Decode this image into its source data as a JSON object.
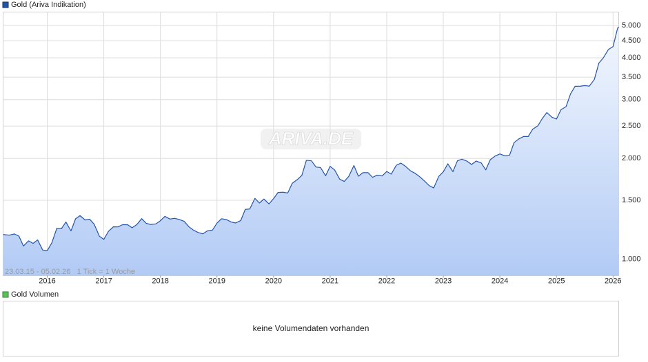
{
  "chart_data": {
    "type": "area",
    "title": "Gold (Ariva Indikation)",
    "info": "23.03.15 - 05.02.26   1 Tick = 1 Woche",
    "watermark": "ARIVA.DE",
    "color": "#2354a8",
    "log_scale": true,
    "grid": true,
    "xlim": [
      2015.22,
      2026.1
    ],
    "xticks": [
      2016,
      2017,
      2018,
      2019,
      2020,
      2021,
      2022,
      2023,
      2024,
      2025,
      2026
    ],
    "ylim": [
      893,
      5480
    ],
    "yticks": [
      {
        "value": 1000,
        "label": "1.000"
      },
      {
        "value": 1500,
        "label": "1.500"
      },
      {
        "value": 2000,
        "label": "2.000"
      },
      {
        "value": 2500,
        "label": "2.500"
      },
      {
        "value": 3000,
        "label": "3.000"
      },
      {
        "value": 3500,
        "label": "3.500"
      },
      {
        "value": 4000,
        "label": "4.000"
      },
      {
        "value": 4500,
        "label": "4.500"
      },
      {
        "value": 5000,
        "label": "5.000"
      }
    ],
    "x": [
      2015.22,
      2015.33,
      2015.42,
      2015.5,
      2015.58,
      2015.67,
      2015.75,
      2015.83,
      2015.92,
      2016.0,
      2016.08,
      2016.17,
      2016.25,
      2016.33,
      2016.42,
      2016.5,
      2016.58,
      2016.67,
      2016.75,
      2016.83,
      2016.92,
      2017.0,
      2017.08,
      2017.17,
      2017.25,
      2017.33,
      2017.42,
      2017.5,
      2017.58,
      2017.67,
      2017.75,
      2017.83,
      2017.92,
      2018.0,
      2018.08,
      2018.17,
      2018.25,
      2018.33,
      2018.42,
      2018.5,
      2018.58,
      2018.67,
      2018.75,
      2018.83,
      2018.92,
      2019.0,
      2019.08,
      2019.17,
      2019.25,
      2019.33,
      2019.42,
      2019.5,
      2019.58,
      2019.67,
      2019.75,
      2019.83,
      2019.92,
      2020.0,
      2020.08,
      2020.17,
      2020.25,
      2020.33,
      2020.42,
      2020.5,
      2020.58,
      2020.67,
      2020.75,
      2020.83,
      2020.92,
      2021.0,
      2021.08,
      2021.17,
      2021.25,
      2021.33,
      2021.42,
      2021.5,
      2021.58,
      2021.67,
      2021.75,
      2021.83,
      2021.92,
      2022.0,
      2022.08,
      2022.17,
      2022.25,
      2022.33,
      2022.42,
      2022.5,
      2022.58,
      2022.67,
      2022.75,
      2022.83,
      2022.92,
      2023.0,
      2023.08,
      2023.17,
      2023.25,
      2023.33,
      2023.42,
      2023.5,
      2023.58,
      2023.67,
      2023.75,
      2023.83,
      2023.92,
      2024.0,
      2024.08,
      2024.17,
      2024.25,
      2024.33,
      2024.42,
      2024.5,
      2024.58,
      2024.67,
      2024.75,
      2024.83,
      2024.92,
      2025.0,
      2025.08,
      2025.17,
      2025.25,
      2025.33,
      2025.42,
      2025.5,
      2025.58,
      2025.67,
      2025.75,
      2025.83,
      2025.92,
      2026.0,
      2026.08,
      2026.1
    ],
    "values": [
      1185,
      1180,
      1190,
      1172,
      1095,
      1135,
      1115,
      1142,
      1065,
      1061,
      1118,
      1238,
      1233,
      1292,
      1215,
      1320,
      1350,
      1310,
      1317,
      1272,
      1173,
      1146,
      1210,
      1250,
      1249,
      1268,
      1268,
      1242,
      1268,
      1322,
      1280,
      1270,
      1275,
      1303,
      1343,
      1318,
      1325,
      1315,
      1298,
      1252,
      1223,
      1201,
      1191,
      1215,
      1222,
      1282,
      1321,
      1313,
      1292,
      1283,
      1305,
      1409,
      1413,
      1520,
      1472,
      1513,
      1463,
      1517,
      1583,
      1586,
      1577,
      1686,
      1730,
      1781,
      1975,
      1968,
      1886,
      1879,
      1776,
      1895,
      1848,
      1734,
      1708,
      1769,
      1906,
      1770,
      1814,
      1814,
      1757,
      1783,
      1774,
      1829,
      1796,
      1909,
      1937,
      1897,
      1837,
      1807,
      1766,
      1711,
      1660,
      1633,
      1768,
      1824,
      1928,
      1827,
      1969,
      1990,
      1963,
      1919,
      1965,
      1940,
      1849,
      1983,
      2036,
      2063,
      2039,
      2044,
      2230,
      2286,
      2327,
      2326,
      2447,
      2503,
      2634,
      2744,
      2657,
      2624,
      2798,
      2858,
      3124,
      3288,
      3289,
      3303,
      3290,
      3448,
      3858,
      4002,
      4239,
      4320,
      4900,
      4950
    ]
  },
  "volume_panel": {
    "title": "Gold Volumen",
    "message": "keine Volumendaten vorhanden"
  }
}
